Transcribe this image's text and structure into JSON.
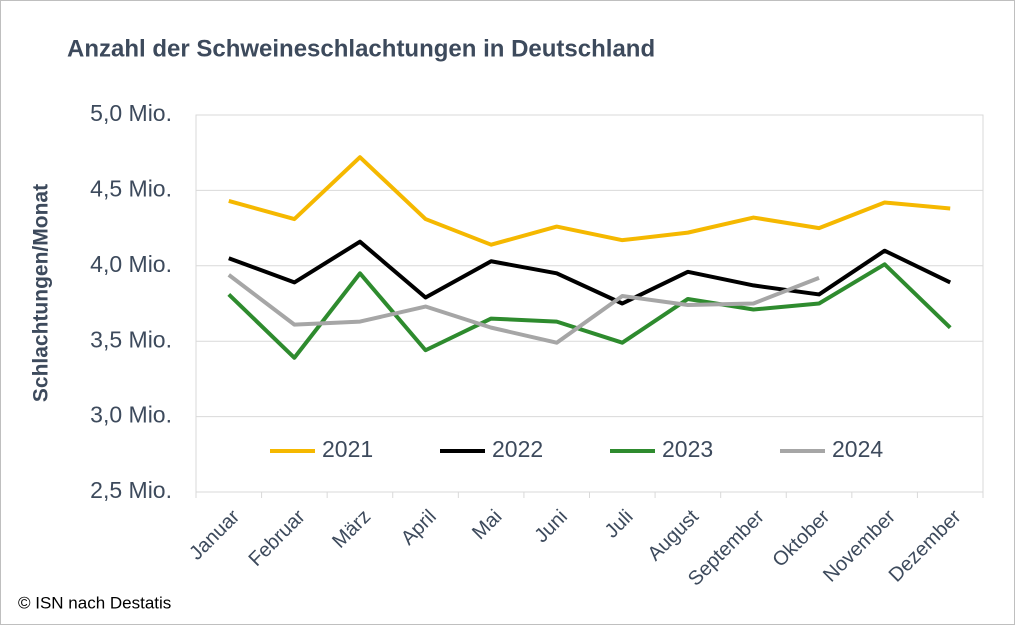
{
  "chart_data": {
    "type": "line",
    "title": "Anzahl der Schweineschlachtungen in Deutschland",
    "y_label": "Schlachtungen/Monat",
    "source": "© ISN nach Destatis",
    "categories": [
      "Januar",
      "Februar",
      "März",
      "April",
      "Mai",
      "Juni",
      "Juli",
      "August",
      "September",
      "Oktober",
      "November",
      "Dezember"
    ],
    "series": [
      {
        "name": "2021",
        "color": "#f5b800",
        "values": [
          4.43,
          4.31,
          4.72,
          4.31,
          4.14,
          4.26,
          4.17,
          4.22,
          4.32,
          4.25,
          4.42,
          4.38
        ]
      },
      {
        "name": "2022",
        "color": "#000000",
        "values": [
          4.05,
          3.89,
          4.16,
          3.79,
          4.03,
          3.95,
          3.75,
          3.96,
          3.87,
          3.81,
          4.1,
          3.89
        ]
      },
      {
        "name": "2023",
        "color": "#2e8b2e",
        "values": [
          3.81,
          3.39,
          3.95,
          3.44,
          3.65,
          3.63,
          3.49,
          3.78,
          3.71,
          3.75,
          4.01,
          3.59
        ]
      },
      {
        "name": "2024",
        "color": "#a6a6a6",
        "values": [
          3.94,
          3.61,
          3.63,
          3.73,
          3.59,
          3.49,
          3.8,
          3.74,
          3.75,
          3.92,
          null,
          null
        ]
      }
    ],
    "ylim": [
      2.5,
      5.0
    ],
    "yticks": [
      {
        "value": 2.5,
        "label": "2,5 Mio."
      },
      {
        "value": 3.0,
        "label": "3,0 Mio."
      },
      {
        "value": 3.5,
        "label": "3,5 Mio."
      },
      {
        "value": 4.0,
        "label": "4,0 Mio."
      },
      {
        "value": 4.5,
        "label": "4,5 Mio."
      },
      {
        "value": 5.0,
        "label": "5,0 Mio."
      }
    ],
    "grid": true,
    "legend": "inside-bottom"
  }
}
